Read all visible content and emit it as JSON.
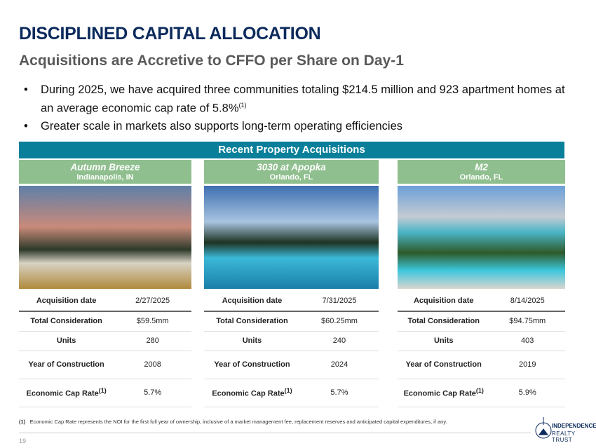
{
  "title": "DISCIPLINED CAPITAL ALLOCATION",
  "subtitle": "Acquisitions are Accretive to CFFO per Share on Day-1",
  "bullets": [
    {
      "text": "During 2025, we have acquired three communities totaling $214.5 million and 923 apartment homes at an average economic cap rate of 5.8%",
      "sup": "(1)"
    },
    {
      "text": "Greater scale in markets also supports long-term operating efficiencies"
    }
  ],
  "banner": "Recent Property Acquisitions",
  "labels": {
    "date": "Acquisition date",
    "consideration": "Total Consideration",
    "units": "Units",
    "year": "Year of Construction",
    "cap": "Economic Cap Rate",
    "cap_sup": "(1)"
  },
  "properties": [
    {
      "name": "Autumn Breeze",
      "city": "Indianapolis, IN",
      "date": "2/27/2025",
      "consideration": "$59.5mm",
      "units": "280",
      "year": "2008",
      "cap": "5.7%"
    },
    {
      "name": "3030 at Apopka",
      "city": "Orlando, FL",
      "date": "7/31/2025",
      "consideration": "$60.25mm",
      "units": "240",
      "year": "2024",
      "cap": "5.7%"
    },
    {
      "name": "M2",
      "city": "Orlando, FL",
      "date": "8/14/2025",
      "consideration": "$94.75mm",
      "units": "403",
      "year": "2019",
      "cap": "5.9%"
    }
  ],
  "footnote": {
    "marker": "(1)",
    "text": "Economic Cap Rate represents the NOI for the first full year of ownership, inclusive of a market management fee, replacement reserves and anticipated capital expenditures, if any."
  },
  "page_number": "19",
  "logo": {
    "line1": "INDEPENDENCE",
    "line2": "REALTY TRUST"
  }
}
